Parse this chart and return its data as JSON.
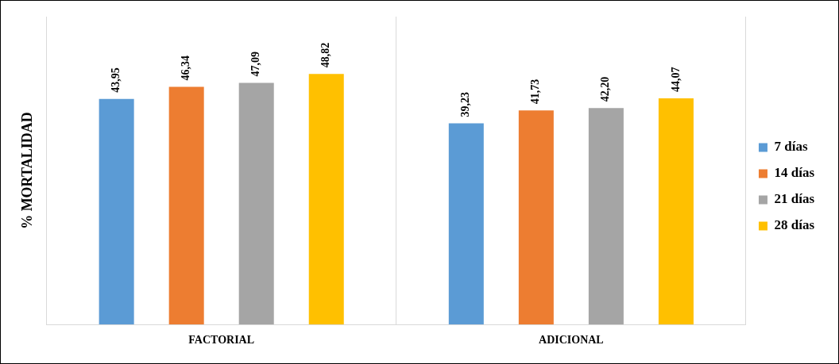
{
  "chart_data": {
    "type": "bar",
    "ylabel": "% MORTALIDAD",
    "categories": [
      "FACTORIAL",
      "ADICIONAL"
    ],
    "series": [
      {
        "name": "7 días",
        "color": "#5b9bd5",
        "values": [
          43.95,
          39.23
        ],
        "value_labels": [
          "43,95",
          "39,23"
        ]
      },
      {
        "name": "14 días",
        "color": "#ed7d31",
        "values": [
          46.34,
          41.73
        ],
        "value_labels": [
          "46,34",
          "41,73"
        ]
      },
      {
        "name": "21 días",
        "color": "#a5a5a5",
        "values": [
          47.09,
          42.2
        ],
        "value_labels": [
          "47,09",
          "42,20"
        ]
      },
      {
        "name": "28 días",
        "color": "#ffc000",
        "values": [
          48.82,
          44.07
        ],
        "value_labels": [
          "48,82",
          "44,07"
        ]
      }
    ],
    "grid": "x",
    "legend": "right"
  }
}
